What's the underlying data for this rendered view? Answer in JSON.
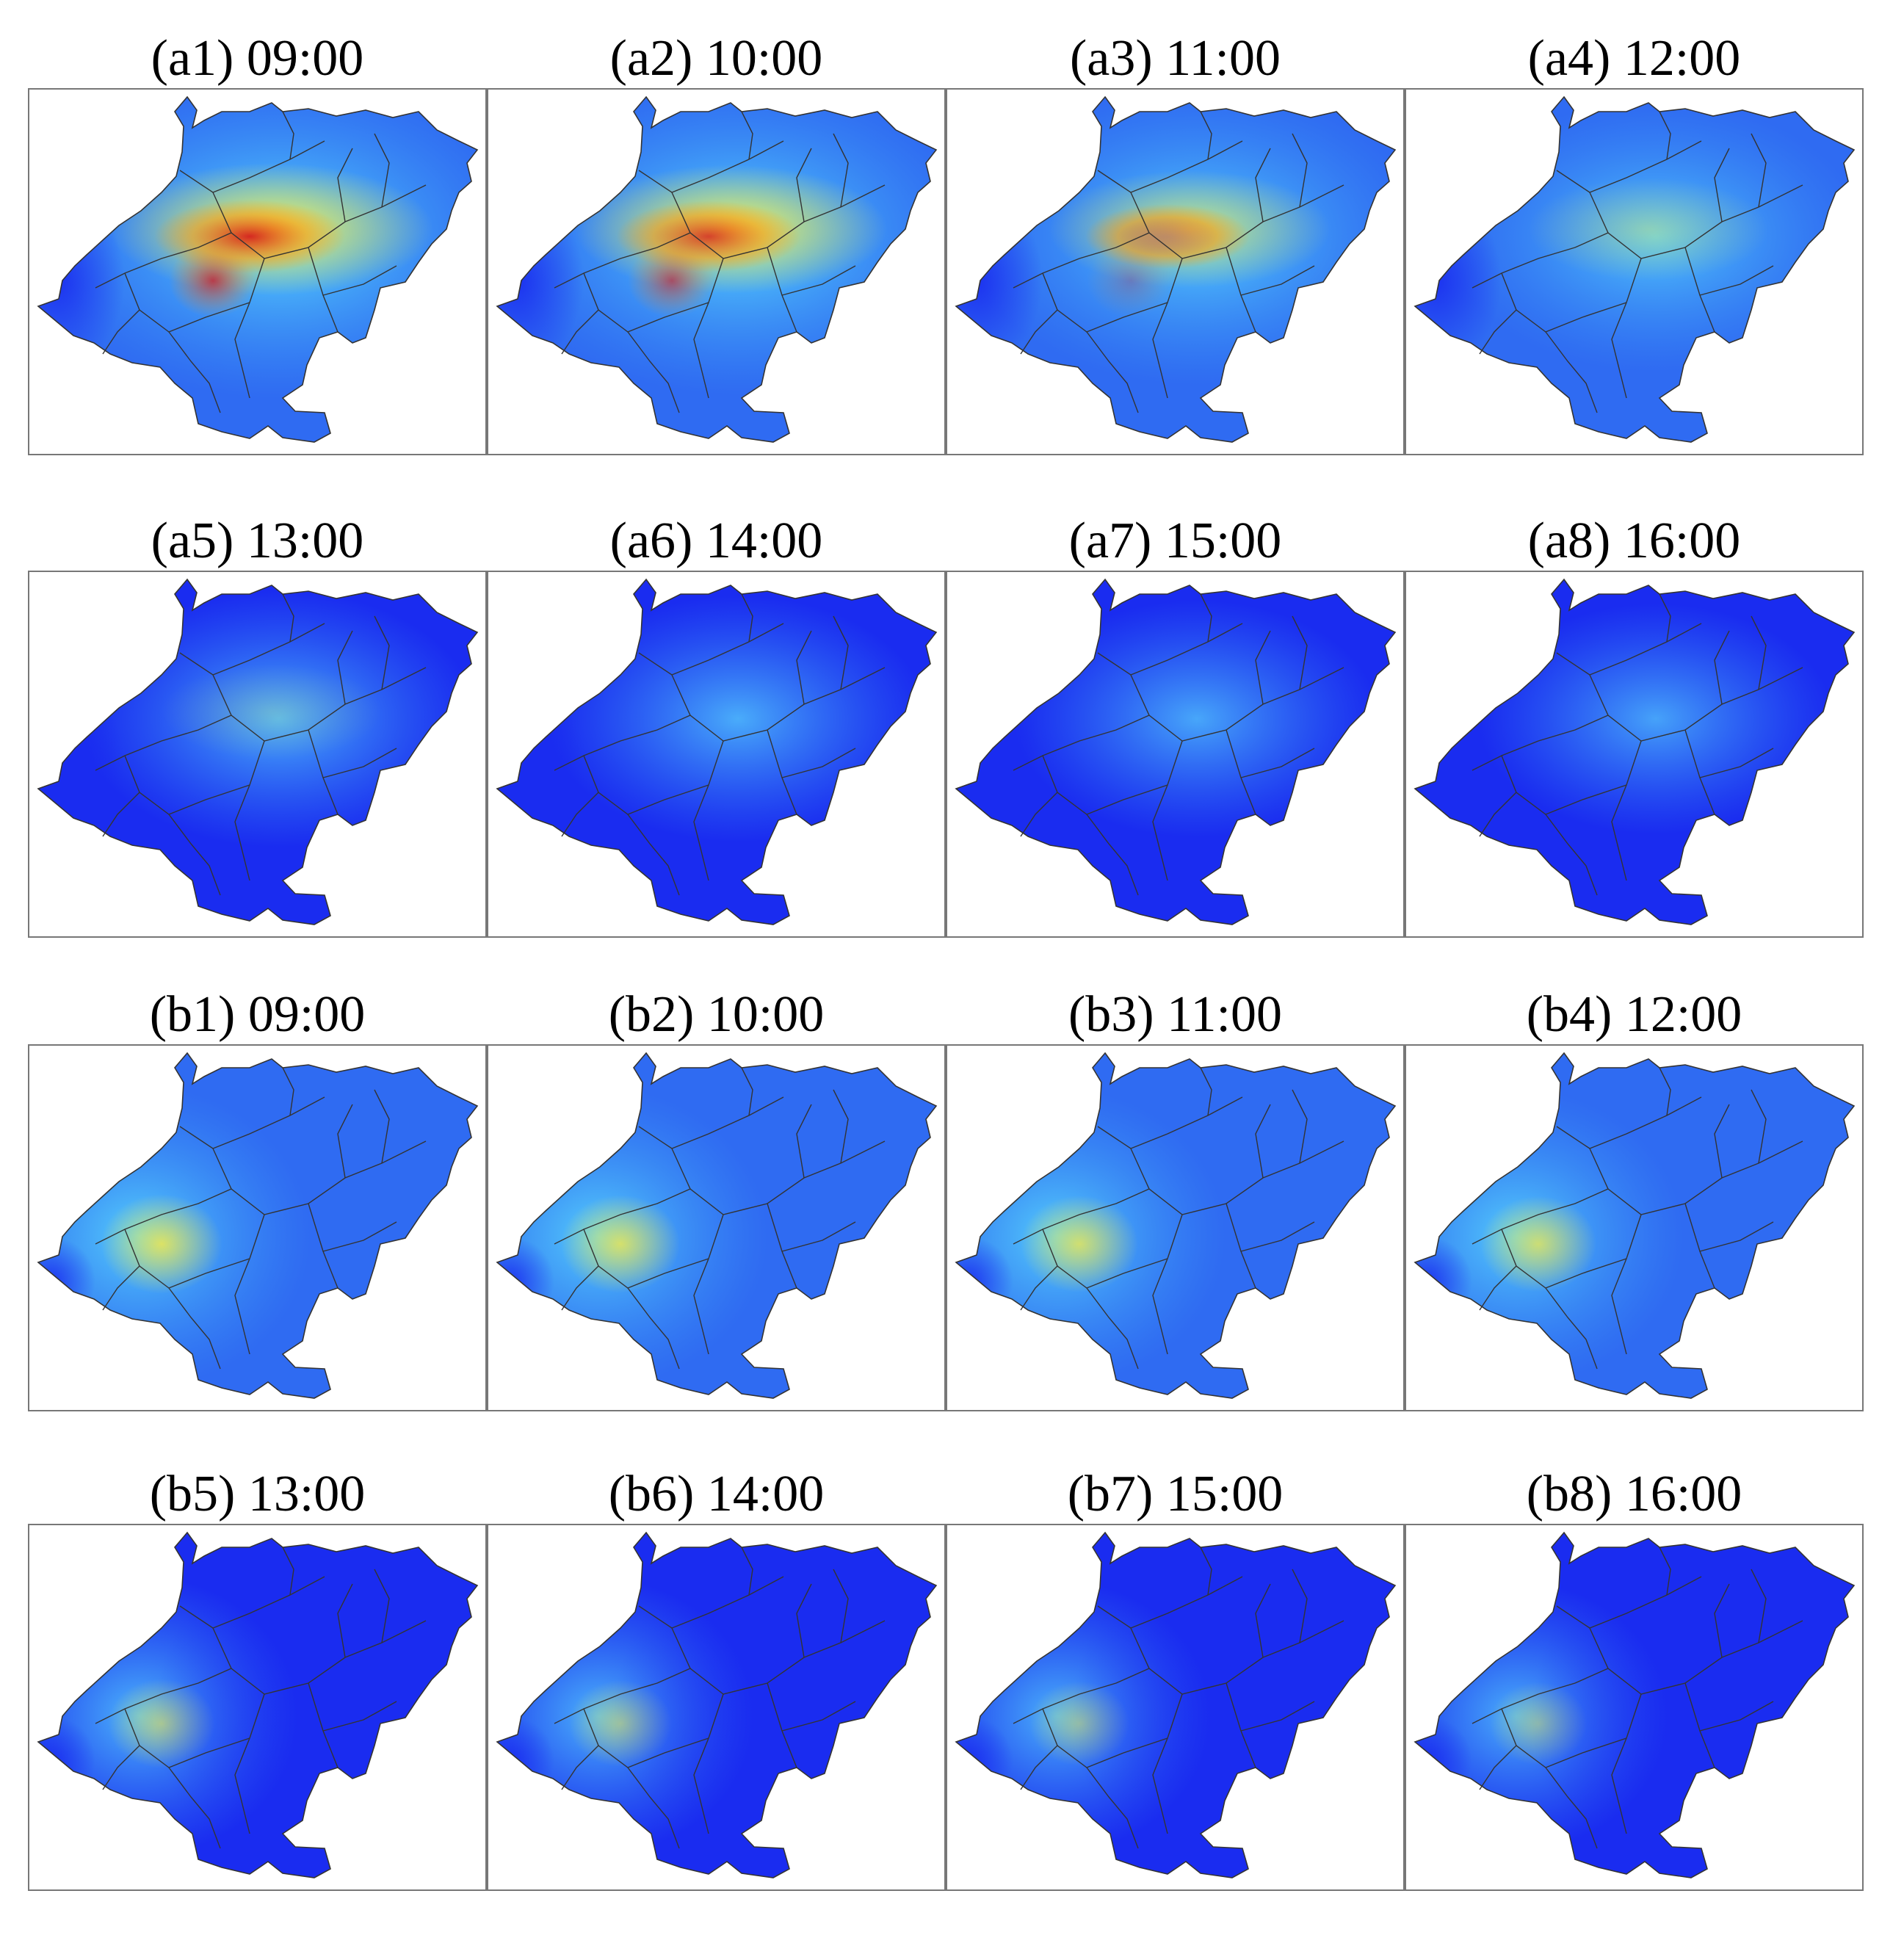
{
  "panels": [
    {
      "label": "(a1) 09:00",
      "group": "a",
      "intensity": 1.0,
      "center": "middle"
    },
    {
      "label": "(a2) 10:00",
      "group": "a",
      "intensity": 0.95,
      "center": "middle"
    },
    {
      "label": "(a3) 11:00",
      "group": "a",
      "intensity": 0.8,
      "center": "middle"
    },
    {
      "label": "(a4) 12:00",
      "group": "a",
      "intensity": 0.6,
      "center": "middle"
    },
    {
      "label": "(a5) 13:00",
      "group": "a",
      "intensity": 0.5,
      "center": "middle"
    },
    {
      "label": "(a6) 14:00",
      "group": "a",
      "intensity": 0.42,
      "center": "middle"
    },
    {
      "label": "(a7) 15:00",
      "group": "a",
      "intensity": 0.35,
      "center": "middle"
    },
    {
      "label": "(a8) 16:00",
      "group": "a",
      "intensity": 0.3,
      "center": "middle"
    },
    {
      "label": "(b1) 09:00",
      "group": "b",
      "intensity": 0.65,
      "center": "west"
    },
    {
      "label": "(b2) 10:00",
      "group": "b",
      "intensity": 0.62,
      "center": "west"
    },
    {
      "label": "(b3) 11:00",
      "group": "b",
      "intensity": 0.6,
      "center": "west"
    },
    {
      "label": "(b4) 12:00",
      "group": "b",
      "intensity": 0.58,
      "center": "west"
    },
    {
      "label": "(b5) 13:00",
      "group": "b",
      "intensity": 0.45,
      "center": "west"
    },
    {
      "label": "(b6) 14:00",
      "group": "b",
      "intensity": 0.4,
      "center": "west"
    },
    {
      "label": "(b7) 15:00",
      "group": "b",
      "intensity": 0.36,
      "center": "west"
    },
    {
      "label": "(b8) 16:00",
      "group": "b",
      "intensity": 0.33,
      "center": "west"
    }
  ],
  "colors": {
    "dark_blue": "#1a2cf0",
    "blue": "#2f6bf2",
    "light_blue": "#3fa6f5",
    "cyan": "#5fe6ff",
    "yellow": "#f5e94a",
    "orange": "#f59a1a",
    "red": "#d4161a",
    "boundary": "#333333",
    "frame": "#777777"
  }
}
